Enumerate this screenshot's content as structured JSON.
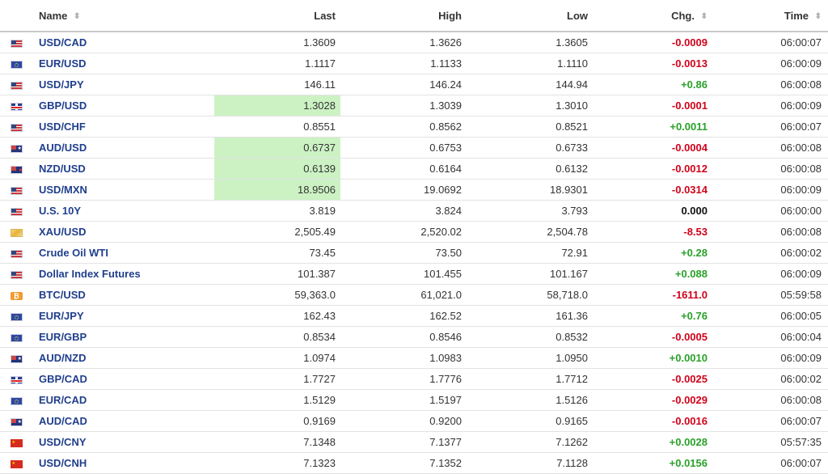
{
  "headers": {
    "name": "Name",
    "last": "Last",
    "high": "High",
    "low": "Low",
    "chg": "Chg.",
    "time": "Time"
  },
  "rows": [
    {
      "flag": "us",
      "name": "USD/CAD",
      "last": "1.3609",
      "high": "1.3626",
      "low": "1.3605",
      "chg": "-0.0009",
      "dir": "neg",
      "time": "06:00:07",
      "highlight": false
    },
    {
      "flag": "eu",
      "name": "EUR/USD",
      "last": "1.1117",
      "high": "1.1133",
      "low": "1.1110",
      "chg": "-0.0013",
      "dir": "neg",
      "time": "06:00:09",
      "highlight": false
    },
    {
      "flag": "us",
      "name": "USD/JPY",
      "last": "146.11",
      "high": "146.24",
      "low": "144.94",
      "chg": "+0.86",
      "dir": "pos",
      "time": "06:00:08",
      "highlight": false
    },
    {
      "flag": "gb",
      "name": "GBP/USD",
      "last": "1.3028",
      "high": "1.3039",
      "low": "1.3010",
      "chg": "-0.0001",
      "dir": "neg",
      "time": "06:00:09",
      "highlight": true
    },
    {
      "flag": "us",
      "name": "USD/CHF",
      "last": "0.8551",
      "high": "0.8562",
      "low": "0.8521",
      "chg": "+0.0011",
      "dir": "pos",
      "time": "06:00:07",
      "highlight": false
    },
    {
      "flag": "au",
      "name": "AUD/USD",
      "last": "0.6737",
      "high": "0.6753",
      "low": "0.6733",
      "chg": "-0.0004",
      "dir": "neg",
      "time": "06:00:08",
      "highlight": true
    },
    {
      "flag": "nz",
      "name": "NZD/USD",
      "last": "0.6139",
      "high": "0.6164",
      "low": "0.6132",
      "chg": "-0.0012",
      "dir": "neg",
      "time": "06:00:08",
      "highlight": true
    },
    {
      "flag": "us",
      "name": "USD/MXN",
      "last": "18.9506",
      "high": "19.0692",
      "low": "18.9301",
      "chg": "-0.0314",
      "dir": "neg",
      "time": "06:00:09",
      "highlight": true
    },
    {
      "flag": "us",
      "name": "U.S. 10Y",
      "last": "3.819",
      "high": "3.824",
      "low": "3.793",
      "chg": "0.000",
      "dir": "neu",
      "time": "06:00:00",
      "highlight": false
    },
    {
      "flag": "xau",
      "name": "XAU/USD",
      "last": "2,505.49",
      "high": "2,520.02",
      "low": "2,504.78",
      "chg": "-8.53",
      "dir": "neg",
      "time": "06:00:08",
      "highlight": false
    },
    {
      "flag": "us",
      "name": "Crude Oil WTI",
      "last": "73.45",
      "high": "73.50",
      "low": "72.91",
      "chg": "+0.28",
      "dir": "pos",
      "time": "06:00:02",
      "highlight": false
    },
    {
      "flag": "us",
      "name": "Dollar Index Futures",
      "last": "101.387",
      "high": "101.455",
      "low": "101.167",
      "chg": "+0.088",
      "dir": "pos",
      "time": "06:00:09",
      "highlight": false
    },
    {
      "flag": "btc",
      "name": "BTC/USD",
      "last": "59,363.0",
      "high": "61,021.0",
      "low": "58,718.0",
      "chg": "-1611.0",
      "dir": "neg",
      "time": "05:59:58",
      "highlight": false
    },
    {
      "flag": "eu",
      "name": "EUR/JPY",
      "last": "162.43",
      "high": "162.52",
      "low": "161.36",
      "chg": "+0.76",
      "dir": "pos",
      "time": "06:00:05",
      "highlight": false
    },
    {
      "flag": "eu",
      "name": "EUR/GBP",
      "last": "0.8534",
      "high": "0.8546",
      "low": "0.8532",
      "chg": "-0.0005",
      "dir": "neg",
      "time": "06:00:04",
      "highlight": false
    },
    {
      "flag": "au",
      "name": "AUD/NZD",
      "last": "1.0974",
      "high": "1.0983",
      "low": "1.0950",
      "chg": "+0.0010",
      "dir": "pos",
      "time": "06:00:09",
      "highlight": false
    },
    {
      "flag": "gb",
      "name": "GBP/CAD",
      "last": "1.7727",
      "high": "1.7776",
      "low": "1.7712",
      "chg": "-0.0025",
      "dir": "neg",
      "time": "06:00:02",
      "highlight": false
    },
    {
      "flag": "eu",
      "name": "EUR/CAD",
      "last": "1.5129",
      "high": "1.5197",
      "low": "1.5126",
      "chg": "-0.0029",
      "dir": "neg",
      "time": "06:00:08",
      "highlight": false
    },
    {
      "flag": "au",
      "name": "AUD/CAD",
      "last": "0.9169",
      "high": "0.9200",
      "low": "0.9165",
      "chg": "-0.0016",
      "dir": "neg",
      "time": "06:00:07",
      "highlight": false
    },
    {
      "flag": "cn",
      "name": "USD/CNY",
      "last": "7.1348",
      "high": "7.1377",
      "low": "7.1262",
      "chg": "+0.0028",
      "dir": "pos",
      "time": "05:57:35",
      "highlight": false
    },
    {
      "flag": "cn",
      "name": "USD/CNH",
      "last": "7.1323",
      "high": "7.1352",
      "low": "7.1128",
      "chg": "+0.0156",
      "dir": "pos",
      "time": "06:00:07",
      "highlight": false
    }
  ],
  "icons": {
    "sort": "sort-arrows-icon",
    "clock": "clock-icon"
  },
  "colors": {
    "positive": "#2aa12a",
    "negative": "#d0021b",
    "link": "#1f3e8c",
    "highlight": "#ccf2c4",
    "clock": "#9ac32d"
  }
}
